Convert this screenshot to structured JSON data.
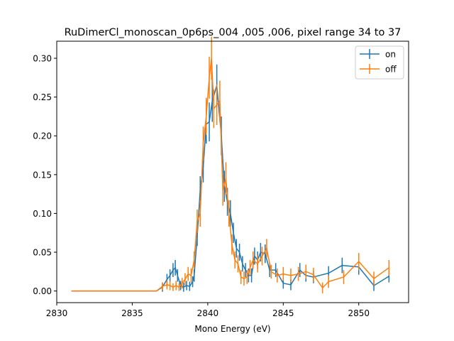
{
  "chart_data": {
    "type": "line",
    "title": "RuDimerCl_monoscan_0p6ps_004 ,005 ,006, pixel range 34 to 37",
    "xlabel": "Mono Energy (eV)",
    "ylabel": "",
    "xlim": [
      2830.0,
      2853.3
    ],
    "ylim": [
      -0.015,
      0.322
    ],
    "xticks": [
      2830,
      2835,
      2840,
      2845,
      2850
    ],
    "yticks": [
      0.0,
      0.05,
      0.1,
      0.15,
      0.2,
      0.25,
      0.3
    ],
    "ytick_labels": [
      "0.00",
      "0.05",
      "0.10",
      "0.15",
      "0.20",
      "0.25",
      "0.30"
    ],
    "legend_position": "top-right",
    "grid": false,
    "series": [
      {
        "name": "on",
        "color": "#1f77b4",
        "x": [
          2831.0,
          2836.6,
          2837.0,
          2837.3,
          2837.5,
          2837.7,
          2837.85,
          2838.0,
          2838.2,
          2838.4,
          2838.6,
          2838.8,
          2839.0,
          2839.1,
          2839.3,
          2839.5,
          2839.7,
          2839.9,
          2840.1,
          2840.3,
          2840.6,
          2840.9,
          2841.1,
          2841.3,
          2841.5,
          2841.7,
          2841.9,
          2842.1,
          2842.3,
          2842.5,
          2842.7,
          2842.9,
          2843.1,
          2843.3,
          2843.5,
          2843.8,
          2844.1,
          2844.5,
          2845.0,
          2845.5,
          2846.1,
          2846.5,
          2847.0,
          2848.0,
          2848.9,
          2850.0,
          2851.0,
          2852.0
        ],
        "y": [
          0.0,
          0.0,
          0.005,
          0.015,
          0.02,
          0.027,
          0.03,
          0.02,
          0.007,
          0.005,
          0.007,
          0.006,
          0.012,
          0.02,
          0.07,
          0.13,
          0.16,
          0.215,
          0.218,
          0.245,
          0.265,
          0.2,
          0.135,
          0.115,
          0.1,
          0.075,
          0.055,
          0.05,
          0.035,
          0.027,
          0.02,
          0.02,
          0.045,
          0.04,
          0.05,
          0.048,
          0.027,
          0.027,
          0.01,
          0.008,
          0.027,
          0.02,
          0.018,
          0.023,
          0.033,
          0.031,
          0.007,
          0.019
        ],
        "err": [
          0.0,
          0.0,
          0.006,
          0.007,
          0.008,
          0.009,
          0.01,
          0.008,
          0.006,
          0.006,
          0.006,
          0.006,
          0.007,
          0.008,
          0.012,
          0.018,
          0.02,
          0.025,
          0.025,
          0.027,
          0.027,
          0.025,
          0.02,
          0.018,
          0.017,
          0.013,
          0.012,
          0.011,
          0.01,
          0.009,
          0.009,
          0.009,
          0.011,
          0.011,
          0.012,
          0.012,
          0.009,
          0.009,
          0.007,
          0.007,
          0.009,
          0.008,
          0.008,
          0.009,
          0.01,
          0.01,
          0.007,
          0.008
        ]
      },
      {
        "name": "off",
        "color": "#ff7f0e",
        "x": [
          2831.0,
          2836.6,
          2837.0,
          2837.3,
          2837.5,
          2837.7,
          2837.9,
          2838.1,
          2838.3,
          2838.5,
          2838.7,
          2838.9,
          2839.1,
          2839.3,
          2839.5,
          2839.7,
          2839.9,
          2840.1,
          2840.25,
          2840.4,
          2840.6,
          2840.8,
          2841.0,
          2841.2,
          2841.4,
          2841.6,
          2841.8,
          2842.0,
          2842.2,
          2842.4,
          2842.6,
          2842.8,
          2843.0,
          2843.3,
          2843.6,
          2843.9,
          2844.2,
          2844.6,
          2845.0,
          2845.5,
          2846.0,
          2846.5,
          2847.0,
          2847.6,
          2848.0,
          2849.0,
          2850.0,
          2851.0,
          2852.0
        ],
        "y": [
          0.0,
          0.0,
          0.006,
          0.008,
          0.007,
          0.005,
          0.007,
          0.005,
          0.01,
          0.015,
          0.022,
          0.02,
          0.04,
          0.09,
          0.1,
          0.19,
          0.225,
          0.275,
          0.3,
          0.235,
          0.24,
          0.245,
          0.13,
          0.145,
          0.1,
          0.06,
          0.04,
          0.035,
          0.018,
          0.016,
          0.018,
          0.03,
          0.04,
          0.035,
          0.045,
          0.055,
          0.025,
          0.02,
          0.022,
          0.02,
          0.022,
          0.025,
          0.021,
          0.004,
          0.012,
          0.018,
          0.038,
          0.016,
          0.03
        ],
        "err": [
          0.0,
          0.0,
          0.005,
          0.006,
          0.006,
          0.005,
          0.006,
          0.005,
          0.007,
          0.008,
          0.009,
          0.009,
          0.011,
          0.015,
          0.017,
          0.022,
          0.024,
          0.027,
          0.028,
          0.025,
          0.026,
          0.026,
          0.02,
          0.021,
          0.017,
          0.013,
          0.011,
          0.011,
          0.009,
          0.009,
          0.009,
          0.01,
          0.011,
          0.011,
          0.012,
          0.012,
          0.009,
          0.009,
          0.009,
          0.009,
          0.009,
          0.009,
          0.009,
          0.007,
          0.008,
          0.009,
          0.011,
          0.009,
          0.01
        ]
      }
    ]
  }
}
